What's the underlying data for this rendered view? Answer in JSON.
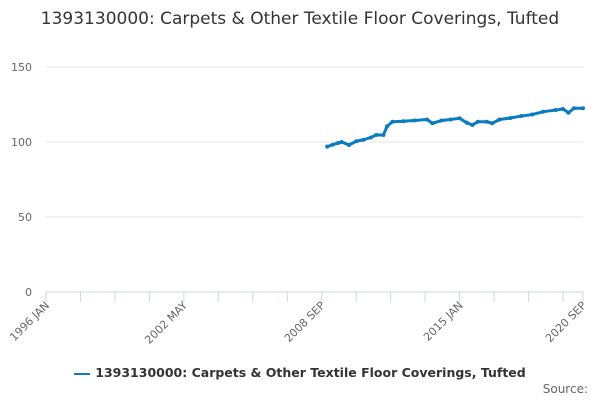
{
  "chart_data": {
    "type": "line",
    "title": "1393130000: Carpets & Other Textile Floor Coverings, Tufted",
    "xlabel": "",
    "ylabel": "",
    "x_range": [
      "1996-01",
      "2020-09"
    ],
    "x_tick_labels": [
      "1996 JAN",
      "2002 MAY",
      "2008 SEP",
      "2015 JAN",
      "2020 SEP"
    ],
    "x_tick_label_dates": [
      "1996-01",
      "2002-05",
      "2008-09",
      "2015-01",
      "2020-09"
    ],
    "ylim": [
      0,
      150
    ],
    "y_ticks": [
      0,
      50,
      100,
      150
    ],
    "grid": "horizontal",
    "legend": "bottom",
    "series": [
      {
        "name": "1393130000: Carpets & Other Textile Floor Coverings, Tufted",
        "color": "#0a7bc1",
        "points": [
          [
            "2008-12",
            96.9
          ],
          [
            "2009-03",
            98.2
          ],
          [
            "2009-06",
            99.3
          ],
          [
            "2009-08",
            100.0
          ],
          [
            "2009-12",
            98.0
          ],
          [
            "2010-04",
            100.5
          ],
          [
            "2010-08",
            101.5
          ],
          [
            "2010-12",
            103.0
          ],
          [
            "2011-03",
            104.7
          ],
          [
            "2011-07",
            104.7
          ],
          [
            "2011-09",
            110.5
          ],
          [
            "2011-12",
            113.5
          ],
          [
            "2012-06",
            113.8
          ],
          [
            "2012-12",
            114.3
          ],
          [
            "2013-07",
            115.0
          ],
          [
            "2013-10",
            112.5
          ],
          [
            "2014-03",
            114.3
          ],
          [
            "2014-08",
            115.0
          ],
          [
            "2015-01",
            115.8
          ],
          [
            "2015-05",
            112.8
          ],
          [
            "2015-08",
            111.3
          ],
          [
            "2015-11",
            113.5
          ],
          [
            "2016-04",
            113.5
          ],
          [
            "2016-07",
            112.5
          ],
          [
            "2016-11",
            115.0
          ],
          [
            "2017-05",
            116.0
          ],
          [
            "2017-11",
            117.3
          ],
          [
            "2018-05",
            118.3
          ],
          [
            "2018-11",
            120.2
          ],
          [
            "2019-06",
            121.3
          ],
          [
            "2019-10",
            122.0
          ],
          [
            "2020-01",
            119.5
          ],
          [
            "2020-04",
            122.5
          ],
          [
            "2020-09",
            122.5
          ]
        ]
      }
    ]
  },
  "source_label": "Source:"
}
